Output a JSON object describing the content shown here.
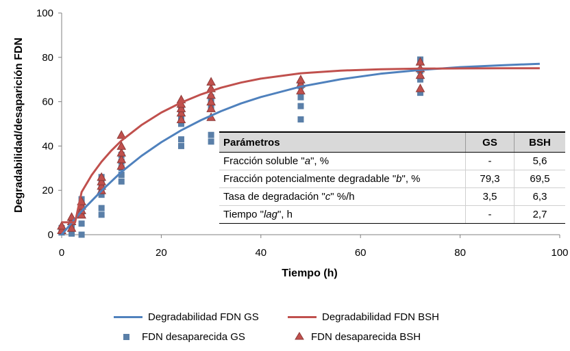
{
  "chart_data": {
    "type": "scatter",
    "ylabel": "Degradabilidad/desaparición FDN",
    "xlabel": "Tiempo (h)",
    "xlim": [
      0,
      100
    ],
    "ylim": [
      0,
      100
    ],
    "xticks": [
      0,
      20,
      40,
      60,
      80,
      100
    ],
    "yticks": [
      0,
      20,
      40,
      60,
      80,
      100
    ],
    "grid": false,
    "legend_position": "bottom",
    "series": [
      {
        "name": "Degradabilidad FDN GS",
        "kind": "line",
        "color": "#4f81bd",
        "x": [
          0,
          4,
          8,
          12,
          16,
          20,
          24,
          28,
          32,
          36,
          40,
          48,
          56,
          64,
          72,
          80,
          88,
          96
        ],
        "y": [
          0,
          10.6,
          19.8,
          28.3,
          35.5,
          41.7,
          47.1,
          51.7,
          55.7,
          59.2,
          62.1,
          66.8,
          70.1,
          72.6,
          74.3,
          75.6,
          76.4,
          77.1
        ]
      },
      {
        "name": "Degradabilidad FDN BSH",
        "kind": "line",
        "color": "#c0504d",
        "x": [
          0,
          2.7,
          4,
          6,
          8,
          10,
          12,
          16,
          20,
          24,
          28,
          32,
          36,
          40,
          48,
          56,
          64,
          72,
          80,
          88,
          96
        ],
        "y": [
          5.6,
          5.6,
          19.2,
          26.8,
          32.9,
          38.0,
          42.4,
          49.4,
          55.1,
          59.6,
          63.3,
          66.3,
          68.6,
          70.4,
          72.8,
          74.0,
          74.6,
          74.9,
          75.0,
          75.1,
          75.1
        ]
      },
      {
        "name": "FDN desaparecida GS",
        "kind": "marker",
        "marker": "square",
        "color": "#5a7fa8",
        "x": [
          0,
          0,
          2,
          2,
          2,
          4,
          4,
          4,
          4,
          4,
          4,
          8,
          8,
          8,
          8,
          8,
          8,
          12,
          12,
          12,
          12,
          12,
          24,
          24,
          24,
          24,
          24,
          30,
          30,
          30,
          30,
          30,
          48,
          48,
          48,
          48,
          72,
          72,
          72,
          72
        ],
        "y": [
          1,
          3,
          0.5,
          3,
          5,
          0,
          5,
          9,
          11,
          14,
          16,
          9,
          12,
          18,
          21,
          24,
          26,
          24,
          27,
          30,
          33,
          36,
          40,
          43,
          50,
          53,
          56,
          42,
          45,
          57,
          60,
          62,
          52,
          58,
          62,
          67,
          64,
          70,
          74,
          79
        ]
      },
      {
        "name": "FDN desaparecida BSH",
        "kind": "marker",
        "marker": "triangle",
        "color": "#c0504d",
        "x": [
          0,
          0,
          2,
          2,
          2,
          4,
          4,
          4,
          4,
          8,
          8,
          8,
          8,
          12,
          12,
          12,
          12,
          12,
          24,
          24,
          24,
          24,
          24,
          30,
          30,
          30,
          30,
          30,
          30,
          48,
          48,
          48,
          72,
          72,
          72,
          72
        ],
        "y": [
          2,
          4,
          3,
          6,
          8,
          9,
          11,
          13,
          15,
          20,
          22,
          24,
          26,
          31,
          34,
          37,
          40,
          45,
          52,
          55,
          57,
          59,
          61,
          53,
          57,
          60,
          63,
          66,
          69,
          65,
          68,
          70,
          66,
          72,
          75,
          78
        ]
      }
    ],
    "table": {
      "headers": [
        "Parámetros",
        "GS",
        "BSH"
      ],
      "rows": [
        {
          "pre": "Fracción soluble \"",
          "em": "a",
          "post": "\", %",
          "gs": "-",
          "bsh": "5,6"
        },
        {
          "pre": "Fracción potencialmente degradable \"",
          "em": "b",
          "post": "\", %",
          "gs": "79,3",
          "bsh": "69,5"
        },
        {
          "pre": "Tasa de degradación \"",
          "em": "c",
          "post": "\" %/h",
          "gs": "3,5",
          "bsh": "6,3"
        },
        {
          "pre": "Tiempo \"",
          "em": "lag",
          "post": "\", h",
          "gs": "-",
          "bsh": "2,7"
        }
      ]
    }
  }
}
